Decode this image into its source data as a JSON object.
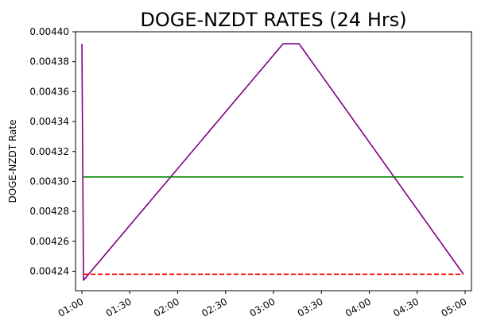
{
  "chart_data": {
    "type": "line",
    "title": "DOGE-NZDT RATES (24 Hrs)",
    "xlabel": "",
    "ylabel": "DOGE-NZDT Rate",
    "x_ticks": [
      "01:00",
      "01:30",
      "02:00",
      "02:30",
      "03:00",
      "03:30",
      "04:00",
      "04:30",
      "05:00"
    ],
    "y_ticks": [
      "0.00424",
      "0.00426",
      "0.00428",
      "0.00430",
      "0.00432",
      "0.00434",
      "0.00436",
      "0.00438",
      "0.00440"
    ],
    "xlim": [
      "00:56",
      "05:04"
    ],
    "ylim": [
      0.004227,
      0.0044
    ],
    "grid": false,
    "series": [
      {
        "color": "#800080",
        "style": "solid",
        "points": [
          [
            "01:00",
            0.004392
          ],
          [
            "01:01",
            0.004234
          ],
          [
            "03:06",
            0.004392
          ],
          [
            "03:16",
            0.004392
          ],
          [
            "04:59",
            0.004238
          ]
        ]
      },
      {
        "color": "#008000",
        "style": "solid",
        "points": [
          [
            "01:01",
            0.004303
          ],
          [
            "04:59",
            0.004303
          ]
        ]
      },
      {
        "color": "#ff0000",
        "style": "dashed",
        "points": [
          [
            "01:01",
            0.004238
          ],
          [
            "04:59",
            0.004238
          ]
        ]
      }
    ]
  }
}
